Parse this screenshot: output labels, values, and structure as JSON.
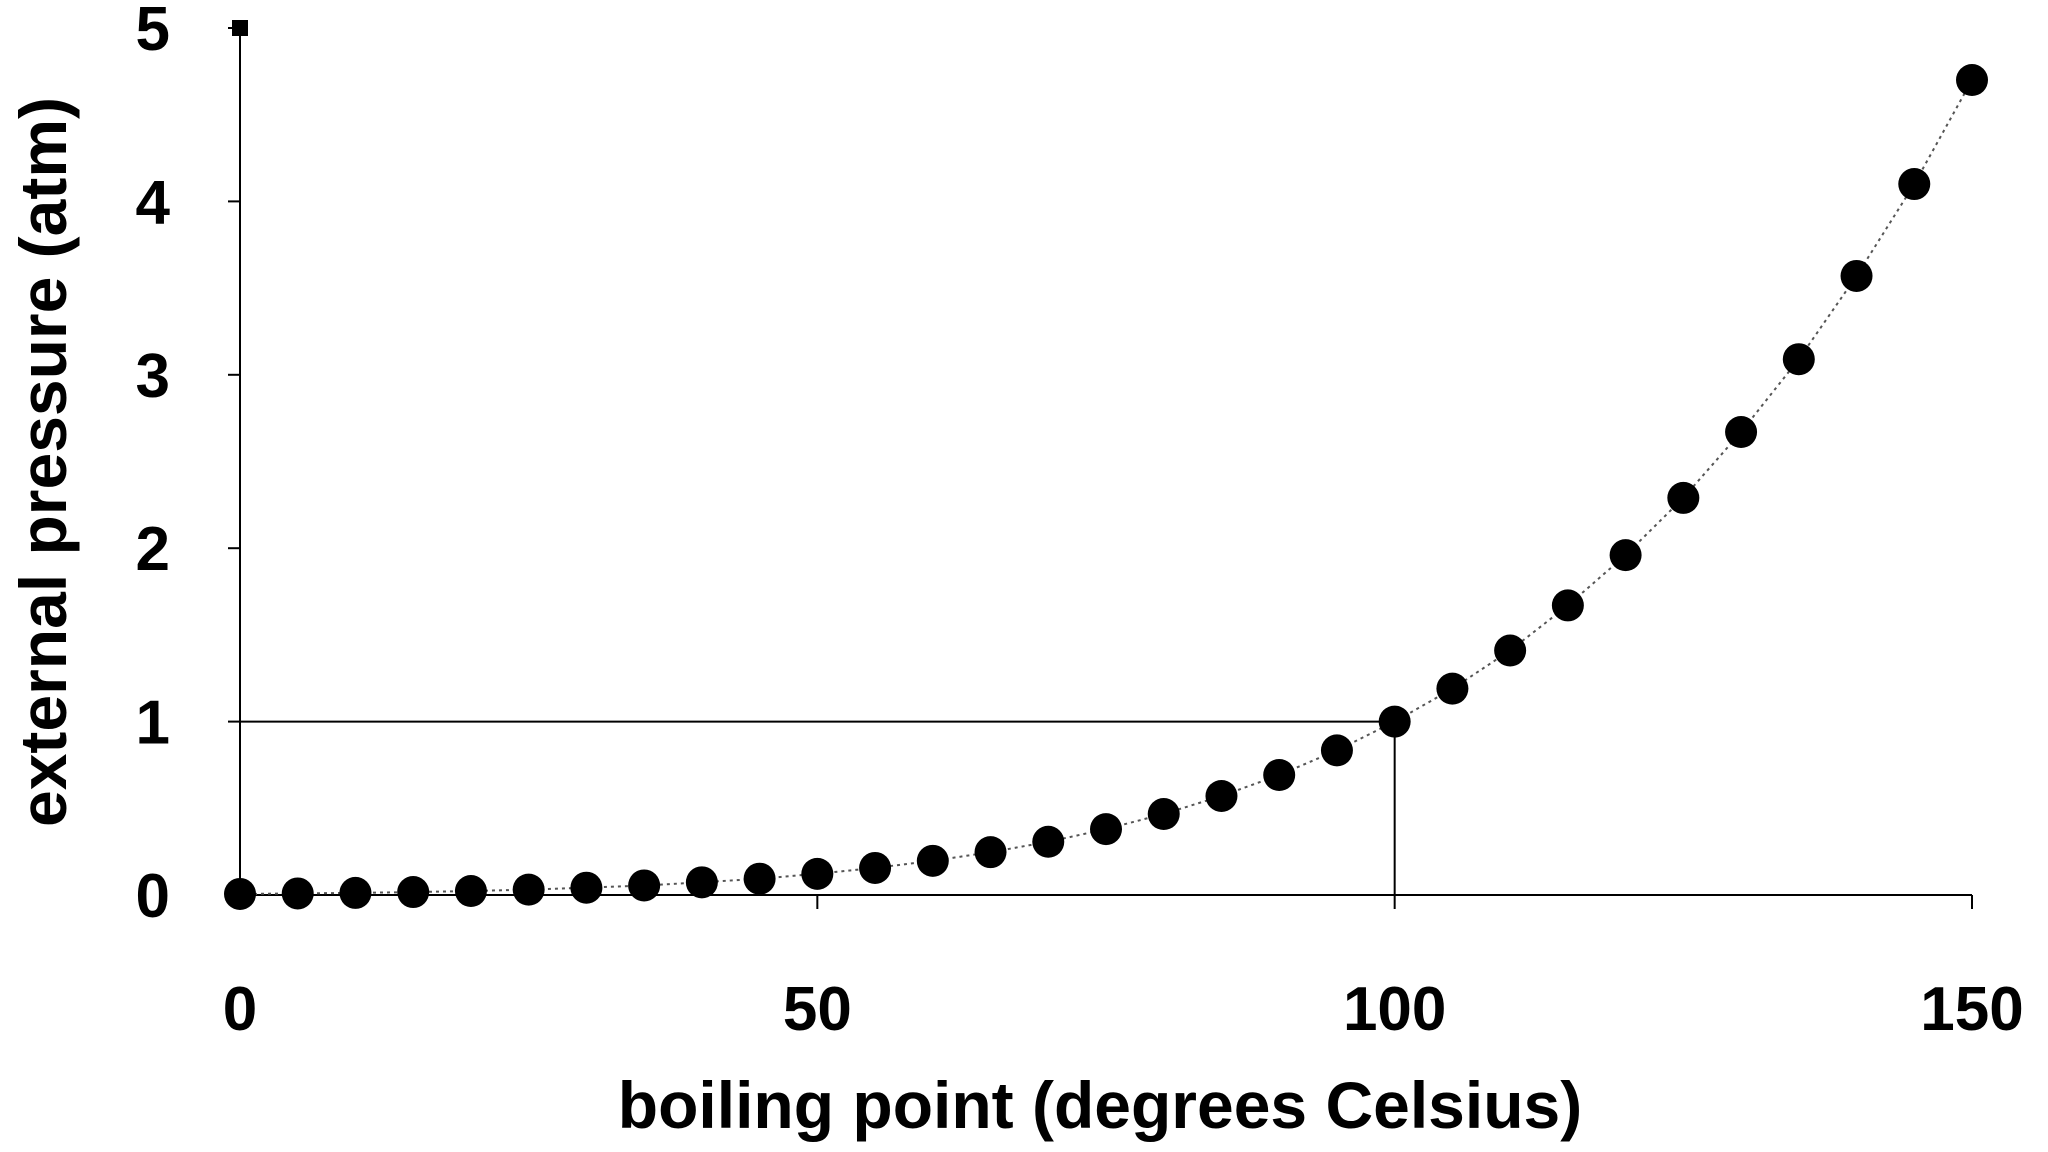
{
  "chart_data": {
    "type": "scatter",
    "title": "",
    "xlabel": "boiling point (degrees Celsius)",
    "ylabel": "external pressure (atm)",
    "xlim": [
      0,
      150
    ],
    "ylim": [
      0,
      5
    ],
    "x_ticks": [
      0,
      50,
      100,
      150
    ],
    "y_ticks": [
      0,
      1,
      2,
      3,
      4,
      5
    ],
    "x_tick_labels": [
      "0",
      "50",
      "100",
      "150"
    ],
    "y_tick_labels": [
      "0",
      "1",
      "2",
      "3",
      "4",
      "5"
    ],
    "grid": false,
    "legend": "none",
    "marker_color": "#000000",
    "line_style": "dotted",
    "series": [
      {
        "x": [
          0,
          5,
          10,
          15,
          20,
          25,
          30,
          35,
          40,
          45,
          50,
          55,
          60,
          65,
          70,
          75,
          80,
          85,
          90,
          95,
          100,
          105,
          110,
          115,
          120,
          125,
          130,
          135,
          140,
          145,
          150
        ],
        "y": [
          0.006,
          0.009,
          0.012,
          0.017,
          0.023,
          0.031,
          0.042,
          0.055,
          0.073,
          0.094,
          0.122,
          0.156,
          0.197,
          0.247,
          0.307,
          0.38,
          0.467,
          0.571,
          0.692,
          0.834,
          1.0,
          1.19,
          1.41,
          1.67,
          1.96,
          2.29,
          2.67,
          3.09,
          3.57,
          4.1,
          4.7
        ]
      }
    ],
    "reference_point": {
      "x": 100,
      "y": 1
    }
  }
}
